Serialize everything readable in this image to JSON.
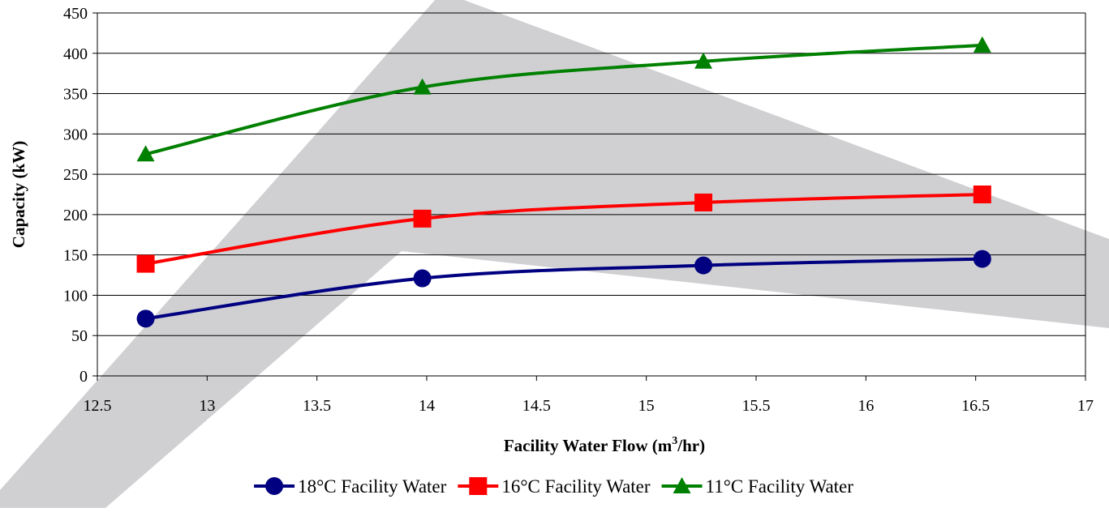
{
  "chart_data": {
    "type": "line",
    "xlabel_main": "Facility Water Flow (m",
    "xlabel_sup": "3",
    "xlabel_tail": "/hr)",
    "ylabel": "Capacity (kW)",
    "xlim": [
      12.5,
      17
    ],
    "ylim": [
      0,
      450
    ],
    "x_ticks": [
      "12.5",
      "13",
      "13.5",
      "14",
      "14.5",
      "15",
      "15.5",
      "16",
      "16.5",
      "17"
    ],
    "y_ticks": [
      "0",
      "50",
      "100",
      "150",
      "200",
      "250",
      "300",
      "350",
      "400",
      "450"
    ],
    "grid": "horizontal",
    "legend_position": "bottom",
    "series": [
      {
        "name": "18°C Facility Water",
        "color": "#000080",
        "marker": "circle",
        "points": [
          [
            12.72,
            71
          ],
          [
            13.98,
            121
          ],
          [
            15.26,
            137
          ],
          [
            16.53,
            145
          ]
        ]
      },
      {
        "name": "16°C Facility Water",
        "color": "#ff0000",
        "marker": "square",
        "points": [
          [
            12.72,
            139
          ],
          [
            13.98,
            195
          ],
          [
            15.26,
            215
          ],
          [
            16.53,
            225
          ]
        ]
      },
      {
        "name": "11°C Facility Water",
        "color": "#008000",
        "marker": "triangle",
        "points": [
          [
            12.72,
            275
          ],
          [
            13.98,
            358
          ],
          [
            15.26,
            390
          ],
          [
            16.53,
            410
          ]
        ]
      }
    ]
  }
}
